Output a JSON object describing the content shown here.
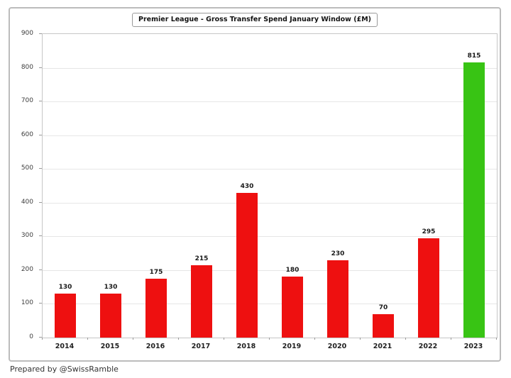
{
  "title": "Premier League - Gross Transfer Spend January Window (£M)",
  "footer": "Prepared by @SwissRamble",
  "colors": {
    "bar_default": "#ee1010",
    "bar_highlight": "#38c414",
    "grid": "#e6e6e6",
    "plot_border": "#c6c6c6",
    "frame_border": "#bcbcbc",
    "label_text": "#1a1a1a",
    "axis_text": "#3d3d3d"
  },
  "chart_data": {
    "type": "bar",
    "title": "Premier League - Gross Transfer Spend January Window (£M)",
    "categories": [
      "2014",
      "2015",
      "2016",
      "2017",
      "2018",
      "2019",
      "2020",
      "2021",
      "2022",
      "2023"
    ],
    "values": [
      130,
      130,
      175,
      215,
      430,
      180,
      230,
      70,
      295,
      815
    ],
    "highlight_index": 9,
    "xlabel": "",
    "ylabel": "",
    "ylim": [
      0,
      900
    ],
    "ytick_step": 100,
    "grid": true,
    "legend_position": "none"
  }
}
